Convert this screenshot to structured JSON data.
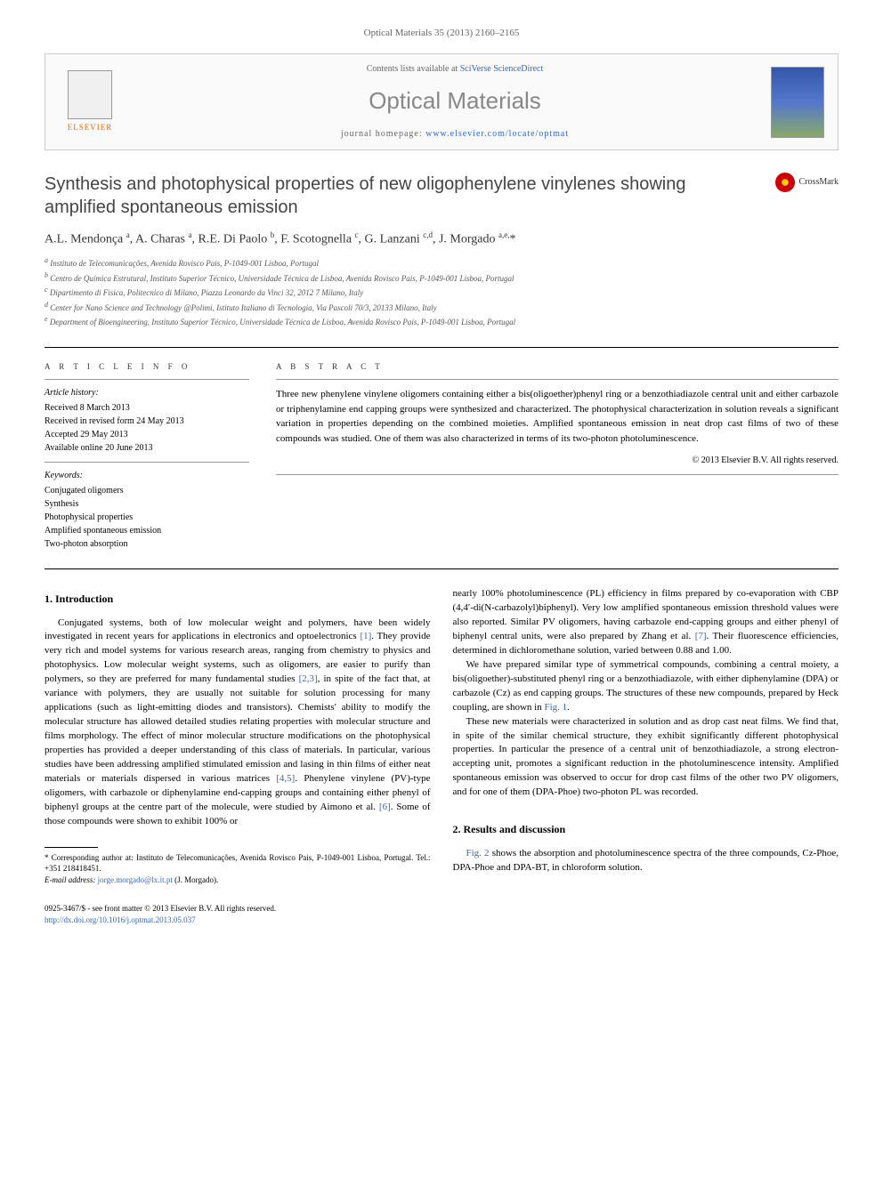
{
  "citation": "Optical Materials 35 (2013) 2160–2165",
  "masthead": {
    "publisher": "ELSEVIER",
    "contents_prefix": "Contents lists available at ",
    "contents_link": "SciVerse ScienceDirect",
    "journal": "Optical Materials",
    "homepage_prefix": "journal homepage: ",
    "homepage_url": "www.elsevier.com/locate/optmat"
  },
  "crossmark_label": "CrossMark",
  "article": {
    "title": "Synthesis and photophysical properties of new oligophenylene vinylenes showing amplified spontaneous emission",
    "authors_html": "A.L. Mendonça <sup>a</sup>, A. Charas <sup>a</sup>, R.E. Di Paolo <sup>b</sup>, F. Scotognella <sup>c</sup>, G. Lanzani <sup>c,d</sup>, J. Morgado <sup>a,e,</sup>*",
    "affiliations": [
      "Instituto de Telecomunicações, Avenida Rovisco Pais, P-1049-001 Lisboa, Portugal",
      "Centro de Química Estrutural, Instituto Superior Técnico, Universidade Técnica de Lisboa, Avenida Rovisco Pais, P-1049-001 Lisboa, Portugal",
      "Dipartimento di Fisica, Politecnico di Milano, Piazza Leonardo da Vinci 32, 2012 7 Milano, Italy",
      "Center for Nano Science and Technology @Polimi, Istituto Italiano di Tecnologia, Via Pascoli 70/3, 20133 Milano, Italy",
      "Department of Bioengineering, Instituto Superior Técnico, Universidade Técnica de Lisboa, Avenida Rovisco Pais, P-1049-001 Lisboa, Portugal"
    ],
    "affil_markers": [
      "a",
      "b",
      "c",
      "d",
      "e"
    ]
  },
  "info": {
    "heading": "A R T I C L E   I N F O",
    "history_label": "Article history:",
    "history": [
      "Received 8 March 2013",
      "Received in revised form 24 May 2013",
      "Accepted 29 May 2013",
      "Available online 20 June 2013"
    ],
    "keywords_label": "Keywords:",
    "keywords": [
      "Conjugated oligomers",
      "Synthesis",
      "Photophysical properties",
      "Amplified spontaneous emission",
      "Two-photon absorption"
    ]
  },
  "abstract": {
    "heading": "A B S T R A C T",
    "text": "Three new phenylene vinylene oligomers containing either a bis(oligoether)phenyl ring or a benzothiadiazole central unit and either carbazole or triphenylamine end capping groups were synthesized and characterized. The photophysical characterization in solution reveals a significant variation in properties depending on the combined moieties. Amplified spontaneous emission in neat drop cast films of two of these compounds was studied. One of them was also characterized in terms of its two-photon photoluminescence.",
    "copyright": "© 2013 Elsevier B.V. All rights reserved."
  },
  "body": {
    "section1_heading": "1. Introduction",
    "col1_p1a": "Conjugated systems, both of low molecular weight and polymers, have been widely investigated in recent years for applications in electronics and optoelectronics ",
    "ref1": "[1]",
    "col1_p1b": ". They provide very rich and model systems for various research areas, ranging from chemistry to physics and photophysics. Low molecular weight systems, such as oligomers, are easier to purify than polymers, so they are preferred for many fundamental studies ",
    "ref23": "[2,3]",
    "col1_p1c": ", in spite of the fact that, at variance with polymers, they are usually not suitable for solution processing for many applications (such as light-emitting diodes and transistors). Chemists' ability to modify the molecular structure has allowed detailed studies relating properties with molecular structure and films morphology. The effect of minor molecular structure modifications on the photophysical properties has provided a deeper understanding of this class of materials. In particular, various studies have been addressing amplified stimulated emission and lasing in thin films of either neat materials or materials dispersed in various matrices ",
    "ref45": "[4,5]",
    "col1_p1d": ". Phenylene vinylene (PV)-type oligomers, with carbazole or diphenylamine end-capping groups and containing either phenyl of biphenyl groups at the centre part of the molecule, were studied by Aimono et al. ",
    "ref6": "[6]",
    "col1_p1e": ". Some of those compounds were shown to exhibit 100% or",
    "col2_p1a": "nearly 100% photoluminescence (PL) efficiency in films prepared by co-evaporation with CBP (4,4′-di(N-carbazolyl)biphenyl). Very low amplified spontaneous emission threshold values were also reported. Similar PV oligomers, having carbazole end-capping groups and either phenyl of biphenyl central units, were also prepared by Zhang et al. ",
    "ref7": "[7]",
    "col2_p1b": ". Their fluorescence efficiencies, determined in dichloromethane solution, varied between 0.88 and 1.00.",
    "col2_p2a": "We have prepared similar type of symmetrical compounds, combining a central moiety, a bis(oligoether)-substituted phenyl ring or a benzothiadiazole, with either diphenylamine (DPA) or carbazole (Cz) as end capping groups. The structures of these new compounds, prepared by Heck coupling, are shown in ",
    "fig1": "Fig. 1",
    "col2_p2b": ".",
    "col2_p3": "These new materials were characterized in solution and as drop cast neat films. We find that, in spite of the similar chemical structure, they exhibit significantly different photophysical properties. In particular the presence of a central unit of benzothiadiazole, a strong electron-accepting unit, promotes a significant reduction in the photoluminescence intensity. Amplified spontaneous emission was observed to occur for drop cast films of the other two PV oligomers, and for one of them (DPA-Phoe) two-photon PL was recorded.",
    "section2_heading": "2. Results and discussion",
    "col2_p4a": "",
    "fig2": "Fig. 2",
    "col2_p4b": " shows the absorption and photoluminescence spectra of the three compounds, Cz-Phoe, DPA-Phoe and DPA-BT, in chloroform solution."
  },
  "footnote": {
    "corr": "* Corresponding author at: Instituto de Telecomunicações, Avenida Rovisco Pais, P-1049-001 Lisboa, Portugal. Tel.: +351 218418451.",
    "email_label": "E-mail address: ",
    "email": "jorge.morgado@lx.it.pt",
    "email_suffix": " (J. Morgado)."
  },
  "footer": {
    "issn": "0925-3467/$ - see front matter © 2013 Elsevier B.V. All rights reserved.",
    "doi": "http://dx.doi.org/10.1016/j.optmat.2013.05.037"
  },
  "colors": {
    "link": "#3366cc",
    "text": "#000000",
    "muted": "#666666",
    "elsevier_orange": "#ff6600",
    "journal_grey": "#888888"
  }
}
